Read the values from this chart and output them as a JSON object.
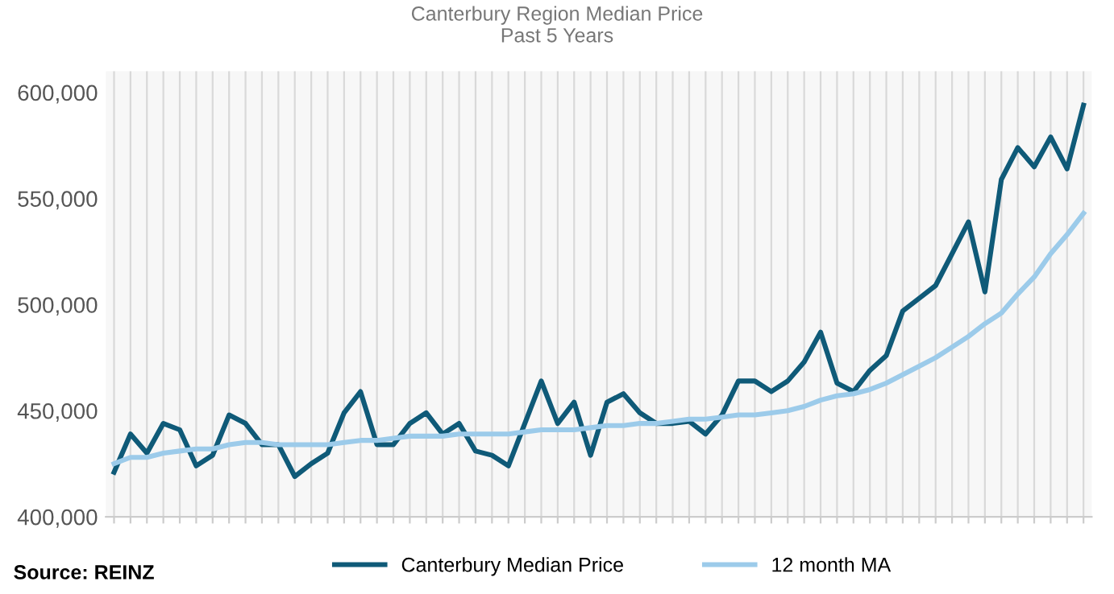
{
  "chart_data": {
    "type": "line",
    "title": "Canterbury Region Median Price\nPast 5 Years",
    "categories": [
      null,
      null,
      null,
      null,
      null,
      null,
      null,
      null,
      null,
      null,
      null,
      null,
      null,
      null,
      null,
      null,
      null,
      null,
      null,
      null,
      null,
      null,
      null,
      null,
      null,
      null,
      null,
      null,
      null,
      null,
      null,
      null,
      null,
      null,
      null,
      null,
      null,
      null,
      null,
      null,
      null,
      null,
      null,
      null,
      null,
      null,
      null,
      null,
      null,
      null,
      null,
      null,
      null,
      null,
      null,
      null,
      null,
      null,
      null,
      null
    ],
    "series": [
      {
        "name": "Canterbury Median Price",
        "color": "#0f5a78",
        "values": [
          421000,
          439000,
          430000,
          444000,
          441000,
          424000,
          429000,
          448000,
          444000,
          434000,
          434000,
          419000,
          425000,
          430000,
          449000,
          459000,
          434000,
          434000,
          444000,
          449000,
          439000,
          444000,
          431000,
          429000,
          424000,
          444000,
          464000,
          444000,
          454000,
          429000,
          454000,
          458000,
          449000,
          444000,
          444000,
          445000,
          439000,
          448000,
          464000,
          464000,
          459000,
          464000,
          473000,
          487000,
          463000,
          459000,
          469000,
          476000,
          497000,
          503000,
          509000,
          524000,
          539000,
          506000,
          559000,
          574000,
          565000,
          579000,
          564000,
          594000
        ]
      },
      {
        "name": "12 month MA",
        "color": "#9ccbea",
        "values": [
          425000,
          428000,
          428000,
          430000,
          431000,
          432000,
          432000,
          434000,
          435000,
          435000,
          434000,
          434000,
          434000,
          434000,
          435000,
          436000,
          436000,
          437000,
          438000,
          438000,
          438000,
          439000,
          439000,
          439000,
          439000,
          440000,
          441000,
          441000,
          441000,
          442000,
          443000,
          443000,
          444000,
          444000,
          445000,
          446000,
          446000,
          447000,
          448000,
          448000,
          449000,
          450000,
          452000,
          455000,
          457000,
          458000,
          460000,
          463000,
          467000,
          471000,
          475000,
          480000,
          485000,
          491000,
          496000,
          505000,
          513000,
          524000,
          533000,
          543000
        ]
      }
    ],
    "ylim": [
      400000,
      610000
    ],
    "yticks": [
      {
        "value": 400000,
        "label": "400,000"
      },
      {
        "value": 450000,
        "label": "450,000"
      },
      {
        "value": 500000,
        "label": "500,000"
      },
      {
        "value": 550000,
        "label": "550,000"
      },
      {
        "value": 600000,
        "label": "600,000"
      }
    ],
    "grid": "x",
    "legend": "bottom",
    "marker": "none",
    "line_style": "solid",
    "annotations": [
      "Source: REINZ"
    ]
  }
}
